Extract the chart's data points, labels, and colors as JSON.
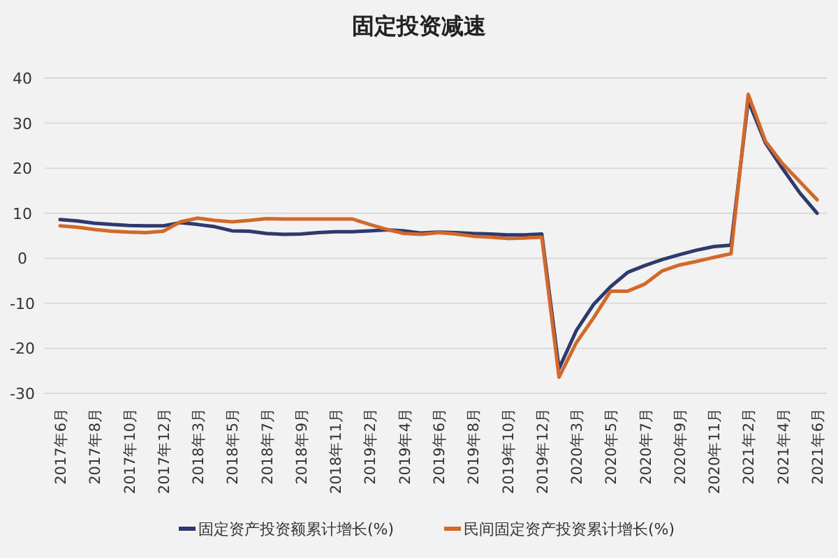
{
  "chart_data": {
    "type": "line",
    "title": "固定投资减速",
    "categories": [
      "2017年6月",
      null,
      "2017年8月",
      null,
      "2017年10月",
      null,
      "2017年12月",
      null,
      "2018年3月",
      null,
      "2018年5月",
      null,
      "2018年7月",
      null,
      "2018年9月",
      null,
      "2018年11月",
      null,
      "2019年2月",
      null,
      "2019年4月",
      null,
      "2019年6月",
      null,
      "2019年8月",
      null,
      "2019年10月",
      null,
      "2019年12月",
      null,
      "2020年3月",
      null,
      "2020年5月",
      null,
      "2020年7月",
      null,
      "2020年9月",
      null,
      "2020年11月",
      null,
      "2021年2月",
      null,
      "2021年4月",
      null,
      "2021年6月"
    ],
    "series": [
      {
        "name": "固定资产投资额累计增长(%)",
        "color": "#2e3a6e",
        "values": [
          8.6,
          8.3,
          7.8,
          7.5,
          7.3,
          7.2,
          7.2,
          7.9,
          7.5,
          7.0,
          6.1,
          6.0,
          5.5,
          5.3,
          5.4,
          5.7,
          5.9,
          5.9,
          6.1,
          6.3,
          6.1,
          5.6,
          5.8,
          5.7,
          5.5,
          5.4,
          5.2,
          5.2,
          5.4,
          -24.5,
          -16.1,
          -10.3,
          -6.3,
          -3.1,
          -1.6,
          -0.3,
          0.8,
          1.8,
          2.6,
          2.9,
          35.0,
          25.6,
          19.9,
          14.5,
          10.0
        ]
      },
      {
        "name": "民间固定资产投资累计增长(%)",
        "color": "#d2692a",
        "values": [
          7.2,
          6.9,
          6.4,
          6.0,
          5.8,
          5.7,
          6.0,
          8.1,
          8.9,
          8.4,
          8.1,
          8.4,
          8.8,
          8.7,
          8.7,
          8.7,
          8.7,
          8.7,
          7.5,
          6.4,
          5.5,
          5.3,
          5.7,
          5.4,
          4.9,
          4.7,
          4.4,
          4.5,
          4.7,
          -26.4,
          -18.8,
          -13.3,
          -7.3,
          -7.3,
          -5.7,
          -2.8,
          -1.5,
          -0.7,
          0.2,
          1.0,
          36.4,
          26.0,
          21.0,
          17.0,
          13.0
        ]
      }
    ],
    "ylim": [
      -30,
      40
    ],
    "yticks": [
      -30,
      -20,
      -10,
      0,
      10,
      20,
      30,
      40
    ],
    "grid": "y",
    "legend": "bottom",
    "marker": "none",
    "line_style": "solid"
  }
}
